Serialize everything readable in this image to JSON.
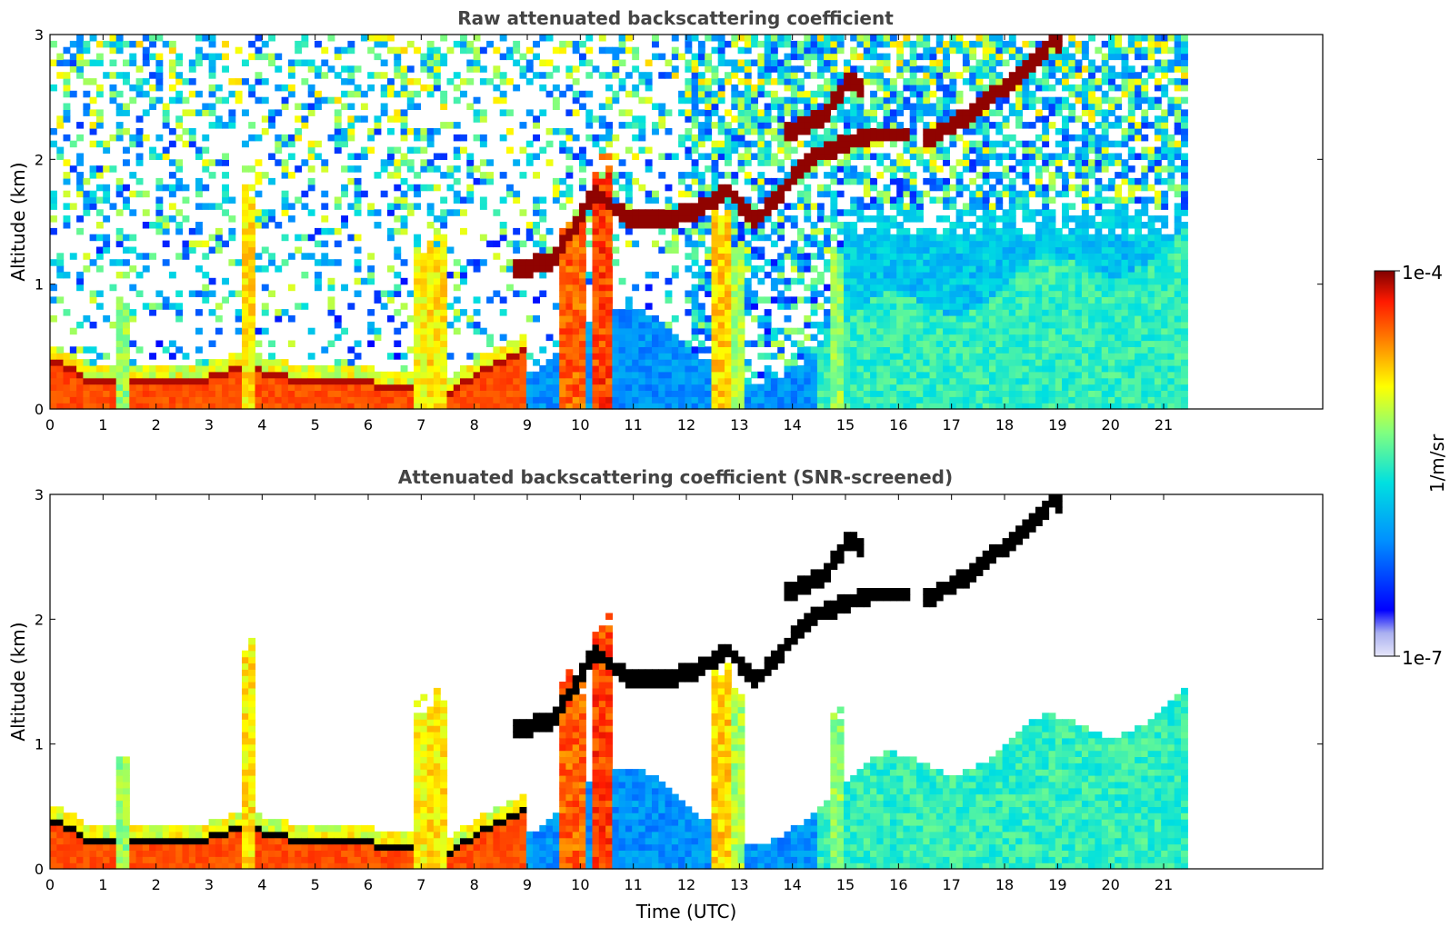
{
  "chart_data": [
    {
      "type": "heatmap",
      "title": "Raw attenuated backscattering coefficient",
      "xlabel": "",
      "ylabel": "Altitude (km)",
      "xlim": [
        0,
        24
      ],
      "ylim": [
        0,
        3
      ],
      "x_ticks": [
        "0",
        "1",
        "2",
        "3",
        "4",
        "5",
        "6",
        "7",
        "8",
        "9",
        "10",
        "11",
        "12",
        "13",
        "14",
        "15",
        "16",
        "17",
        "18",
        "19",
        "20",
        "21"
      ],
      "y_ticks": [
        "0",
        "1",
        "2",
        "3"
      ],
      "screened": false,
      "data_end_hour": 21.45,
      "grid": false
    },
    {
      "type": "heatmap",
      "title": "Attenuated backscattering coefficient (SNR-screened)",
      "xlabel": "Time (UTC)",
      "ylabel": "Altitude (km)",
      "xlim": [
        0,
        24
      ],
      "ylim": [
        0,
        3
      ],
      "x_ticks": [
        "0",
        "1",
        "2",
        "3",
        "4",
        "5",
        "6",
        "7",
        "8",
        "9",
        "10",
        "11",
        "12",
        "13",
        "14",
        "15",
        "16",
        "17",
        "18",
        "19",
        "20",
        "21"
      ],
      "y_ticks": [
        "0",
        "1",
        "2",
        "3"
      ],
      "screened": true,
      "data_end_hour": 21.45,
      "grid": false
    }
  ],
  "colorbar": {
    "label": "1/m/sr",
    "max_label": "1e-4",
    "min_label": "1e-7",
    "scale": "log",
    "colormap": "jet",
    "colors": [
      "#e6e6fa",
      "#0000ff",
      "#00aaff",
      "#20e0c0",
      "#80ff80",
      "#ffff00",
      "#ff8000",
      "#ff2000",
      "#800000"
    ]
  }
}
